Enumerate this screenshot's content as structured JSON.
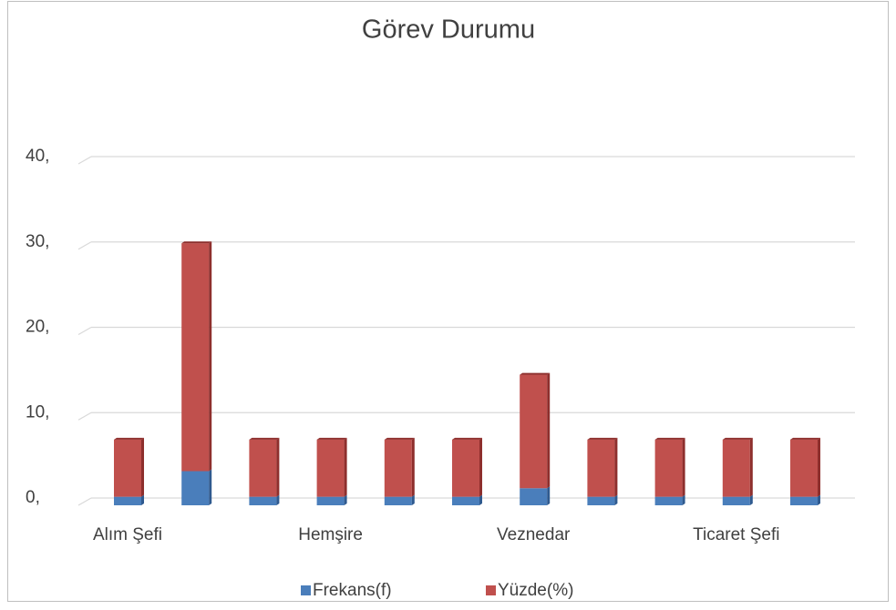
{
  "chart_data": {
    "type": "bar",
    "stacked": true,
    "title": "Görev Durumu",
    "categories": [
      "Alım Şefi",
      null,
      null,
      "Hemşire",
      null,
      null,
      "Veznedar",
      null,
      null,
      "Ticaret Şefi",
      null
    ],
    "series": [
      {
        "name": "Frekans(f)",
        "color": "#4a7ebb",
        "values": [
          1,
          4,
          1,
          1,
          1,
          1,
          2,
          1,
          1,
          1,
          1
        ]
      },
      {
        "name": "Yüzde(%)",
        "color": "#c0504d",
        "values": [
          6.7,
          26.7,
          6.7,
          6.7,
          6.7,
          6.7,
          13.3,
          6.7,
          6.7,
          6.7,
          6.7
        ]
      }
    ],
    "ylim": [
      0,
      40
    ],
    "yticks": [
      {
        "value": 0,
        "label": "0,"
      },
      {
        "value": 10,
        "label": "10,"
      },
      {
        "value": 20,
        "label": "20,"
      },
      {
        "value": 30,
        "label": "30,"
      },
      {
        "value": 40,
        "label": "40,"
      }
    ],
    "grid": true,
    "legend": "bottom"
  }
}
